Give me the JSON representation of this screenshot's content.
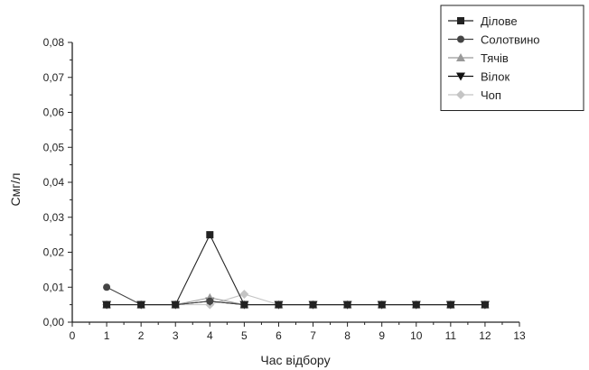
{
  "chart_data": {
    "type": "line",
    "xlabel": "Час відбору",
    "ylabel": "Cмг/л",
    "xlim": [
      0,
      13
    ],
    "ylim": [
      0,
      0.08
    ],
    "x_ticks": [
      "0",
      "1",
      "2",
      "3",
      "4",
      "5",
      "6",
      "7",
      "8",
      "9",
      "10",
      "11",
      "12",
      "13"
    ],
    "y_ticks": [
      "0,00",
      "0,01",
      "0,02",
      "0,03",
      "0,04",
      "0,05",
      "0,06",
      "0,07",
      "0,08"
    ],
    "legend_position": "top-right",
    "grid": false,
    "series": [
      {
        "name": "Ділове",
        "marker": "square",
        "color": "#222222",
        "x": [
          1,
          2,
          3,
          4,
          5,
          6,
          7,
          8,
          9,
          10,
          11,
          12
        ],
        "y": [
          0.005,
          0.005,
          0.005,
          0.025,
          0.005,
          0.005,
          0.005,
          0.005,
          0.005,
          0.005,
          0.005,
          0.005
        ]
      },
      {
        "name": "Солотвино",
        "marker": "circle",
        "color": "#444444",
        "x": [
          1,
          2,
          3,
          4,
          5,
          6,
          7,
          8,
          9,
          10,
          11,
          12
        ],
        "y": [
          0.01,
          0.005,
          0.005,
          0.006,
          0.005,
          0.005,
          0.005,
          0.005,
          0.005,
          0.005,
          0.005,
          0.005
        ]
      },
      {
        "name": "Тячів",
        "marker": "triangle-up",
        "color": "#9a9a9a",
        "x": [
          1,
          2,
          3,
          4,
          5,
          6,
          7,
          8,
          9,
          10,
          11,
          12
        ],
        "y": [
          0.005,
          0.005,
          0.005,
          0.007,
          0.005,
          0.005,
          0.005,
          0.005,
          0.005,
          0.005,
          0.005,
          0.005
        ]
      },
      {
        "name": "Вілок",
        "marker": "triangle-down",
        "color": "#111111",
        "x": [
          1,
          2,
          3,
          4,
          5,
          6,
          7,
          8,
          9,
          10,
          11,
          12
        ],
        "y": [
          0.005,
          0.005,
          0.005,
          0.006,
          0.005,
          0.005,
          0.005,
          0.005,
          0.005,
          0.005,
          0.005,
          0.005
        ]
      },
      {
        "name": "Чоп",
        "marker": "diamond",
        "color": "#c4c4c4",
        "x": [
          1,
          2,
          3,
          4,
          5,
          6,
          7,
          8,
          9,
          10,
          11,
          12
        ],
        "y": [
          0.005,
          0.005,
          0.005,
          0.005,
          0.008,
          0.005,
          0.005,
          0.005,
          0.005,
          0.005,
          0.005,
          0.005
        ]
      }
    ]
  }
}
